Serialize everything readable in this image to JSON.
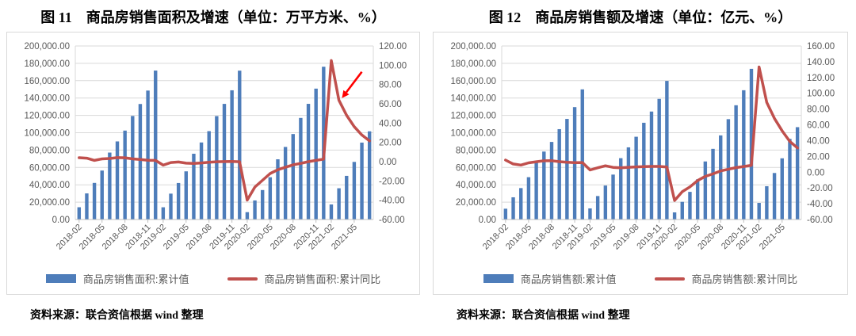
{
  "colors": {
    "bar": "#4E7DBA",
    "line": "#C0504D",
    "grid": "#D9D9D9",
    "axis_line": "#BFBFBF",
    "axis_text": "#595959",
    "arrow_red": "#FF0000",
    "box_border": "#D9D9D9"
  },
  "figures": [
    {
      "title": "图 11　商品房销售面积及增速（单位：万平方米、%）",
      "source": "资料来源：联合资信根据 wind 整理",
      "legend": [
        {
          "swatch": "bar",
          "label": "商品房销售面积:累计值"
        },
        {
          "swatch": "line",
          "label": "商品房销售面积:累计同比"
        }
      ],
      "arrow": {
        "index": 34.4,
        "value": 66,
        "dx": 25,
        "dy": -33
      }
    },
    {
      "title": "图 12　商品房销售额及增速（单位：亿元、%）",
      "source": "资料来源：联合资信根据 wind 整理",
      "legend": [
        {
          "swatch": "bar",
          "label": "商品房销售额:累计值"
        },
        {
          "swatch": "line",
          "label": "商品房销售额:累计同比"
        }
      ],
      "arrow": null
    }
  ],
  "chart_data": [
    {
      "type": "bar+line",
      "title": "图 11　商品房销售面积及增速（单位：万平方米、%）",
      "grid": true,
      "legend_position": "bottom",
      "categories": [
        "2018-02",
        "2018-03",
        "2018-04",
        "2018-05",
        "2018-06",
        "2018-07",
        "2018-08",
        "2018-09",
        "2018-10",
        "2018-11",
        "2018-12",
        "2019-02",
        "2019-03",
        "2019-04",
        "2019-05",
        "2019-06",
        "2019-07",
        "2019-08",
        "2019-09",
        "2019-10",
        "2019-11",
        "2019-12",
        "2020-02",
        "2020-03",
        "2020-04",
        "2020-05",
        "2020-06",
        "2020-07",
        "2020-08",
        "2020-09",
        "2020-10",
        "2020-11",
        "2020-12",
        "2021-02",
        "2021-03",
        "2021-04",
        "2021-05",
        "2021-06",
        "2021-07"
      ],
      "series": [
        {
          "name": "商品房销售面积:累计值",
          "kind": "bar",
          "axis": "left",
          "values": [
            14142,
            30088,
            42192,
            56409,
            77143,
            89990,
            102474,
            119313,
            133117,
            148604,
            171654,
            14102,
            29829,
            42085,
            55518,
            75786,
            88783,
            101849,
            119179,
            133251,
            148905,
            171558,
            8475,
            21978,
            33973,
            48703,
            69404,
            83631,
            98486,
            117073,
            133294,
            150834,
            176086,
            17363,
            36007,
            50305,
            66383,
            88635,
            101648
          ]
        },
        {
          "name": "商品房销售面积:累计同比",
          "kind": "line",
          "axis": "right",
          "values": [
            4.1,
            3.6,
            1.3,
            2.9,
            3.3,
            4.2,
            4.0,
            2.9,
            2.2,
            1.4,
            1.3,
            -3.6,
            -0.9,
            -0.3,
            -1.6,
            -1.8,
            -1.3,
            -0.6,
            -0.1,
            0.1,
            0.2,
            -0.1,
            -39.9,
            -26.3,
            -19.3,
            -12.3,
            -8.4,
            -5.8,
            -3.3,
            -1.8,
            0.0,
            1.3,
            2.6,
            104.9,
            63.8,
            48.1,
            36.3,
            27.7,
            21.5
          ]
        }
      ],
      "left_axis": {
        "min": 0,
        "max": 200000,
        "tick_labels": [
          "200,000.00",
          "180,000.00",
          "160,000.00",
          "140,000.00",
          "120,000.00",
          "100,000.00",
          "80,000.00",
          "60,000.00",
          "40,000.00",
          "20,000.00",
          "0.00"
        ]
      },
      "right_axis": {
        "min": -60,
        "max": 120,
        "tick_labels": [
          "120.00",
          "100.00",
          "80.00",
          "60.00",
          "40.00",
          "20.00",
          "0.00",
          "-20.00",
          "-40.00",
          "-60.00"
        ]
      },
      "x_ticks": [
        {
          "index": 0,
          "label": "2018-02"
        },
        {
          "index": 3,
          "label": "2018-05"
        },
        {
          "index": 6,
          "label": "2018-08"
        },
        {
          "index": 9,
          "label": "2018-11"
        },
        {
          "index": 11,
          "label": "2019-02"
        },
        {
          "index": 14,
          "label": "2019-05"
        },
        {
          "index": 17,
          "label": "2019-08"
        },
        {
          "index": 20,
          "label": "2019-11"
        },
        {
          "index": 22,
          "label": "2020-02"
        },
        {
          "index": 25,
          "label": "2020-05"
        },
        {
          "index": 28,
          "label": "2020-08"
        },
        {
          "index": 31,
          "label": "2020-11"
        },
        {
          "index": 33,
          "label": "2021-02"
        },
        {
          "index": 36,
          "label": "2021-05"
        }
      ]
    },
    {
      "type": "bar+line",
      "title": "图 12　商品房销售额及增速（单位：亿元、%）",
      "grid": true,
      "legend_position": "bottom",
      "categories": [
        "2018-02",
        "2018-03",
        "2018-04",
        "2018-05",
        "2018-06",
        "2018-07",
        "2018-08",
        "2018-09",
        "2018-10",
        "2018-11",
        "2018-12",
        "2019-02",
        "2019-03",
        "2019-04",
        "2019-05",
        "2019-06",
        "2019-07",
        "2019-08",
        "2019-09",
        "2019-10",
        "2019-11",
        "2019-12",
        "2020-02",
        "2020-03",
        "2020-04",
        "2020-05",
        "2020-06",
        "2020-07",
        "2020-08",
        "2020-09",
        "2020-10",
        "2020-11",
        "2020-12",
        "2021-02",
        "2021-03",
        "2021-04",
        "2021-05",
        "2021-06",
        "2021-07"
      ],
      "series": [
        {
          "name": "商品房销售额:累计值",
          "kind": "bar",
          "axis": "left",
          "values": [
            12454,
            25597,
            36222,
            48778,
            66945,
            78300,
            89396,
            104132,
            115914,
            129508,
            149973,
            12803,
            27039,
            39141,
            51773,
            70698,
            83162,
            95373,
            111491,
            124417,
            139006,
            159725,
            8203,
            20365,
            31863,
            46269,
            66895,
            81422,
            96943,
            115647,
            131665,
            148969,
            173613,
            19151,
            38378,
            53609,
            70534,
            92931,
            106430
          ]
        },
        {
          "name": "商品房销售额:累计同比",
          "kind": "line",
          "axis": "right",
          "values": [
            15.3,
            10.4,
            9.0,
            11.8,
            13.2,
            14.4,
            14.5,
            13.3,
            12.5,
            12.1,
            12.2,
            2.8,
            5.6,
            8.1,
            6.1,
            5.6,
            6.2,
            6.7,
            7.1,
            7.3,
            7.3,
            6.5,
            -35.9,
            -24.7,
            -18.6,
            -10.6,
            -5.4,
            -2.1,
            1.6,
            3.7,
            5.8,
            7.2,
            8.7,
            133.4,
            88.5,
            68.2,
            52.4,
            38.9,
            30.7
          ]
        }
      ],
      "left_axis": {
        "min": 0,
        "max": 200000,
        "tick_labels": [
          "200,000.00",
          "180,000.00",
          "160,000.00",
          "140,000.00",
          "120,000.00",
          "100,000.00",
          "80,000.00",
          "60,000.00",
          "40,000.00",
          "20,000.00",
          "0.00"
        ]
      },
      "right_axis": {
        "min": -60,
        "max": 160,
        "tick_labels": [
          "160.00",
          "140.00",
          "120.00",
          "100.00",
          "80.00",
          "60.00",
          "40.00",
          "20.00",
          "0.00",
          "-20.00",
          "-40.00",
          "-60.00"
        ]
      },
      "x_ticks": [
        {
          "index": 0,
          "label": "2018-02"
        },
        {
          "index": 3,
          "label": "2018-05"
        },
        {
          "index": 6,
          "label": "2018-08"
        },
        {
          "index": 9,
          "label": "2018-11"
        },
        {
          "index": 11,
          "label": "2019-02"
        },
        {
          "index": 14,
          "label": "2019-05"
        },
        {
          "index": 17,
          "label": "2019-08"
        },
        {
          "index": 20,
          "label": "2019-11"
        },
        {
          "index": 22,
          "label": "2020-02"
        },
        {
          "index": 25,
          "label": "2020-05"
        },
        {
          "index": 28,
          "label": "2020-08"
        },
        {
          "index": 31,
          "label": "2020-11"
        },
        {
          "index": 33,
          "label": "2021-02"
        },
        {
          "index": 36,
          "label": "2021-05"
        }
      ]
    }
  ]
}
